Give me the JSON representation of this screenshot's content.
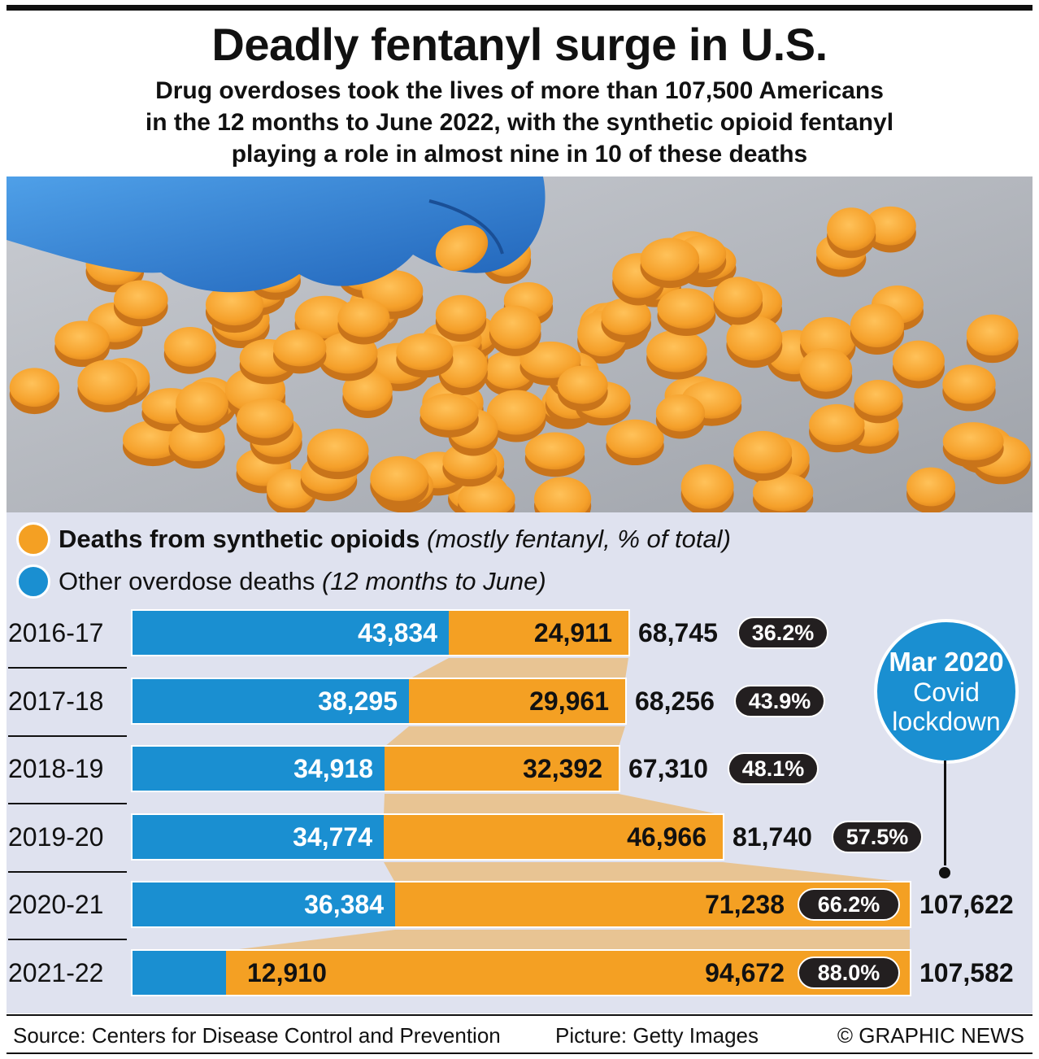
{
  "header": {
    "title": "Deadly fentanyl surge in U.S.",
    "subtitle_line1": "Drug overdoses took the lives of more than 107,500 Americans",
    "subtitle_line2": "in the 12 months to June 2022, with the synthetic opioid fentanyl",
    "subtitle_line3": "playing a role in almost nine in 10 of these deaths"
  },
  "legend": {
    "synthetic_bold": "Deaths from synthetic opioids",
    "synthetic_italic": "(mostly fentanyl, % of total)",
    "other_plain": "Other overdose deaths",
    "other_italic": "(12 months to June)"
  },
  "colors": {
    "other": "#1a8fd1",
    "synthetic": "#f4a023",
    "panel": "#dfe2ef",
    "pill": "#231f20"
  },
  "chart_data": {
    "type": "bar",
    "orientation": "horizontal",
    "stacked": true,
    "categories": [
      "2016-17",
      "2017-18",
      "2018-19",
      "2019-20",
      "2020-21",
      "2021-22"
    ],
    "series": [
      {
        "name": "Other overdose deaths",
        "values": [
          43834,
          38295,
          34918,
          34774,
          36384,
          12910
        ]
      },
      {
        "name": "Deaths from synthetic opioids",
        "values": [
          24911,
          29961,
          32392,
          46966,
          71238,
          94672
        ]
      }
    ],
    "other_labels": [
      "43,834",
      "38,295",
      "34,918",
      "34,774",
      "36,384",
      "12,910"
    ],
    "synthetic_labels": [
      "24,911",
      "29,961",
      "32,392",
      "46,966",
      "71,238",
      "94,672"
    ],
    "totals": [
      68745,
      68256,
      67310,
      81740,
      107622,
      107582
    ],
    "total_labels": [
      "68,745",
      "68,256",
      "67,310",
      "81,740",
      "107,622",
      "107,582"
    ],
    "share_labels": [
      "36.2%",
      "43.9%",
      "48.1%",
      "57.5%",
      "66.2%",
      "88.0%"
    ],
    "annotation": {
      "date": "Mar 2020",
      "line1": "Covid",
      "line2": "lockdown",
      "between": [
        "2019-20",
        "2020-21"
      ]
    }
  },
  "footer": {
    "source": "Source: Centers for Disease Control and Prevention",
    "picture": "Picture: Getty Images",
    "credit": "© GRAPHIC NEWS"
  }
}
